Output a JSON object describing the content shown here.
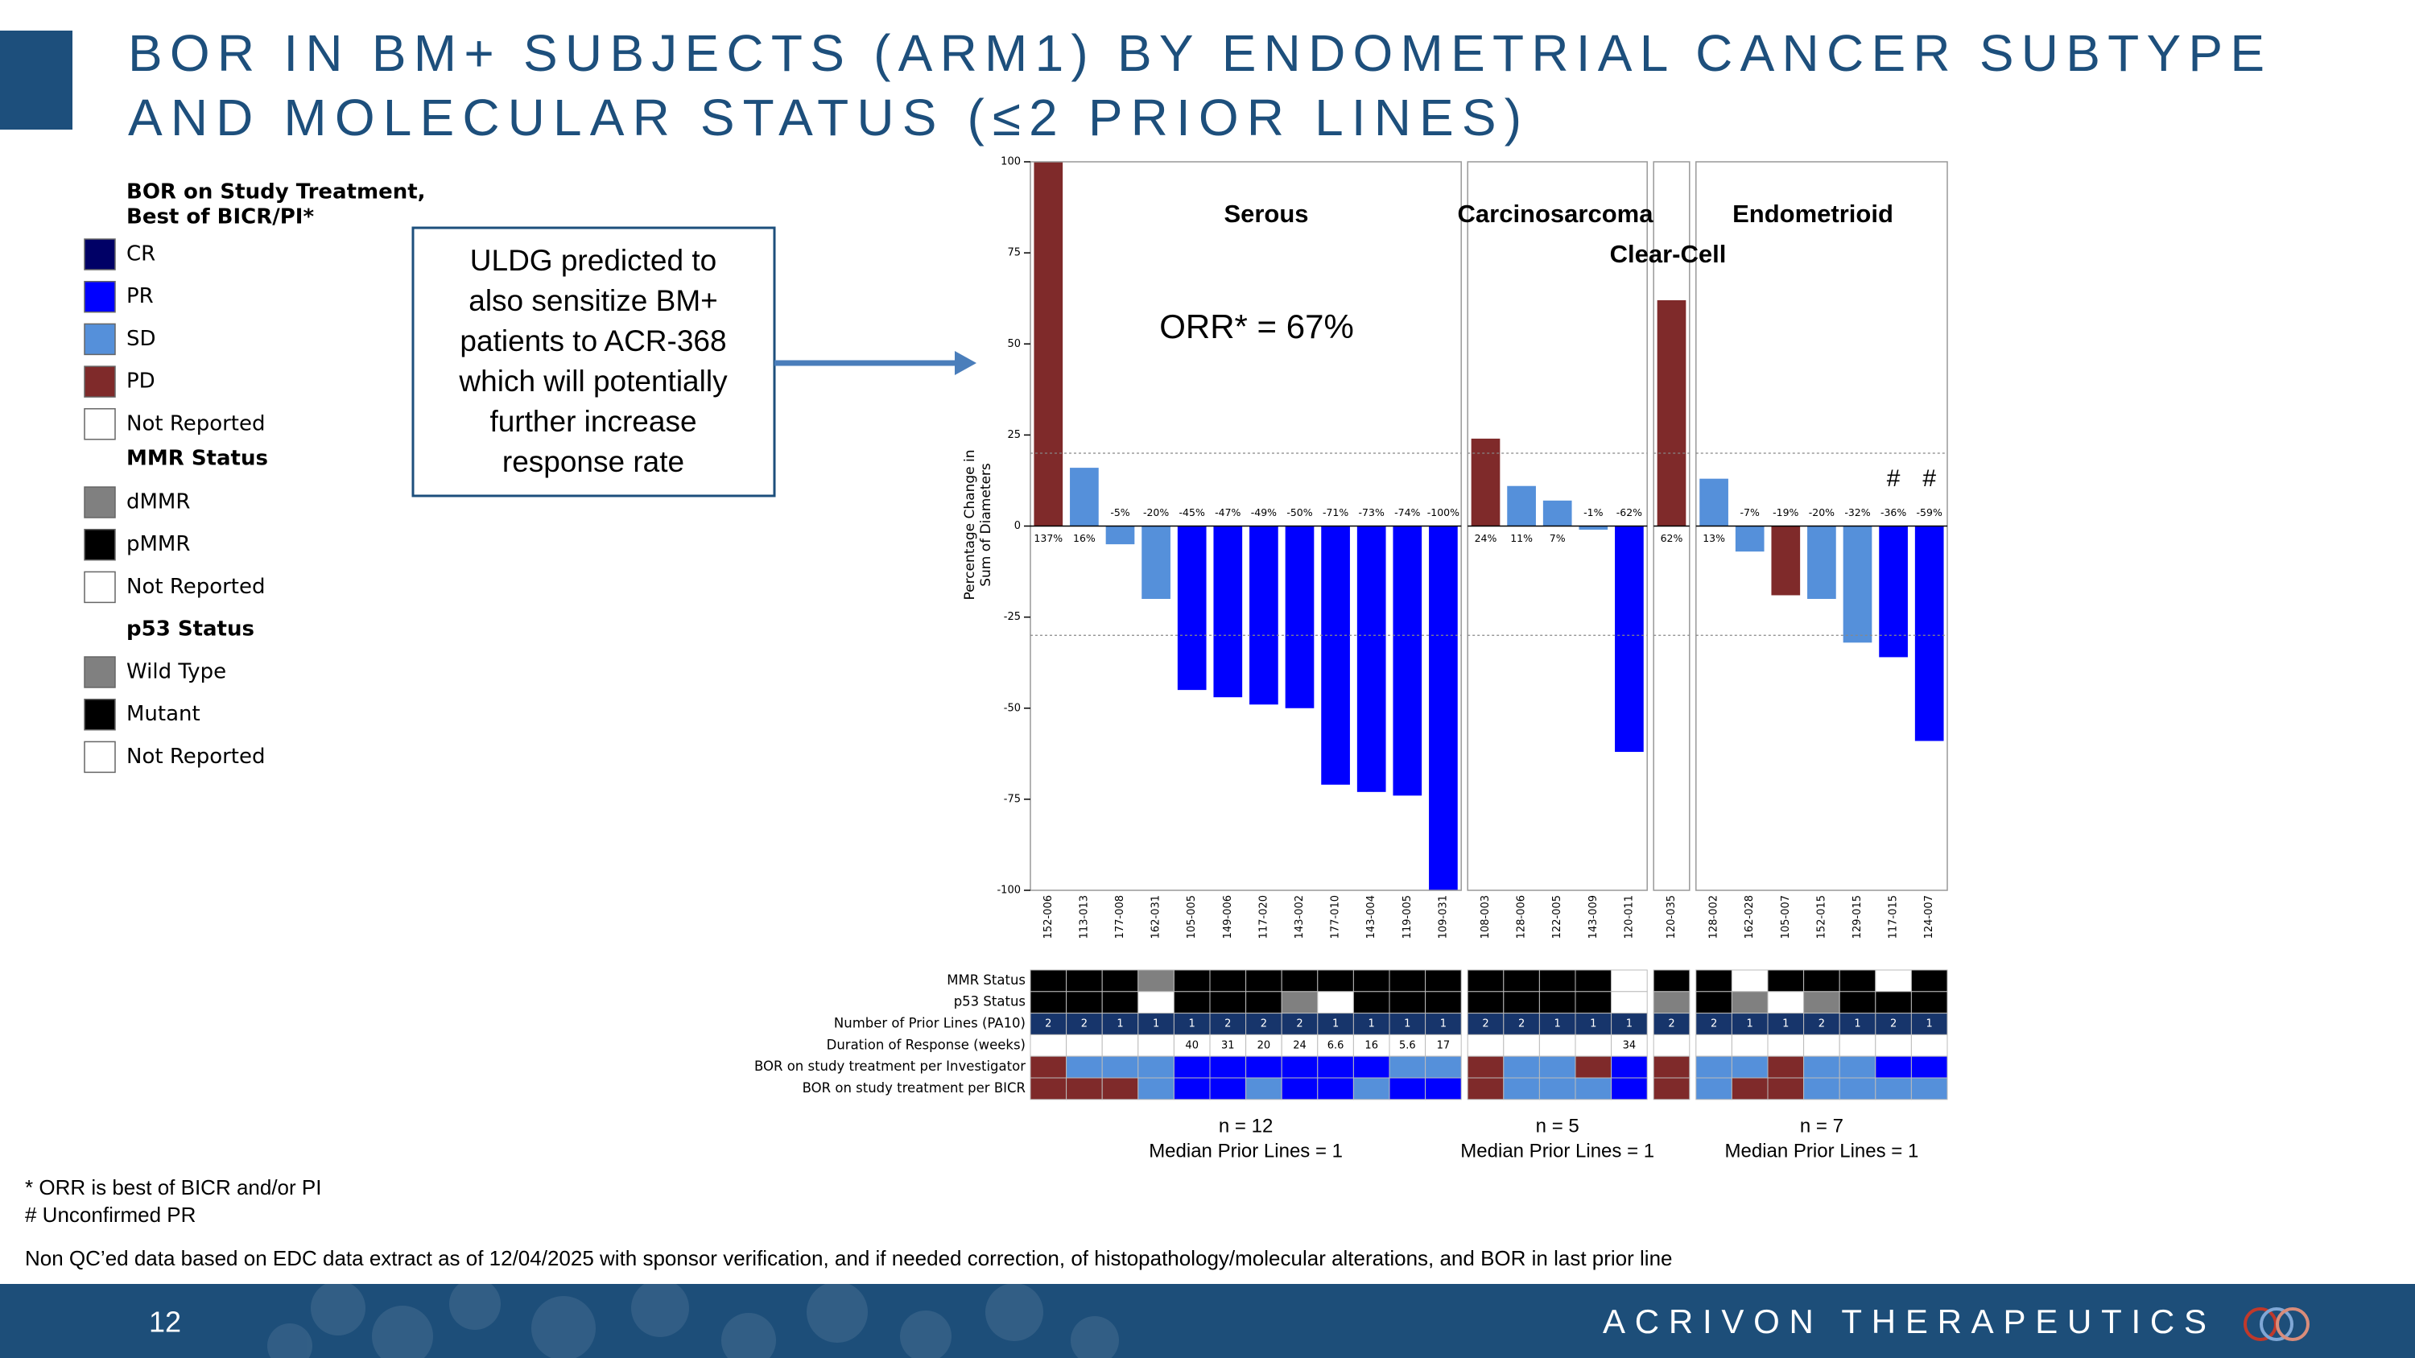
{
  "title": [
    "BOR IN BM+ SUBJECTS (ARM1) BY ENDOMETRIAL CANCER SUBTYPE",
    "AND MOLECULAR STATUS (≤2 PRIOR LINES)"
  ],
  "legend": {
    "groups": [
      {
        "title": [
          "BOR on Study Treatment,",
          "Best of BICR/PI*"
        ],
        "items": [
          {
            "label": "CR",
            "color": "#000066"
          },
          {
            "label": "PR",
            "color": "#0000ff"
          },
          {
            "label": "SD",
            "color": "#5590da"
          },
          {
            "label": "PD",
            "color": "#7f2a2a"
          },
          {
            "label": "Not Reported",
            "color": "#ffffff"
          }
        ]
      },
      {
        "title": [
          "MMR Status"
        ],
        "items": [
          {
            "label": "dMMR",
            "color": "#808080"
          },
          {
            "label": "pMMR",
            "color": "#000000"
          },
          {
            "label": "Not Reported",
            "color": "#ffffff"
          }
        ]
      },
      {
        "title": [
          "p53 Status"
        ],
        "items": [
          {
            "label": "Wild Type",
            "color": "#808080"
          },
          {
            "label": "Mutant",
            "color": "#000000"
          },
          {
            "label": "Not Reported",
            "color": "#ffffff"
          }
        ]
      }
    ]
  },
  "callout": [
    "ULDG predicted to",
    "also sensitize BM+",
    "patients to ACR-368",
    "which will potentially",
    "further increase",
    "response rate"
  ],
  "chart_data": {
    "type": "bar",
    "y_label": [
      "Percentage Change in",
      "Sum of Diameters"
    ],
    "ylim": [
      -100,
      100
    ],
    "yticks": [
      -100,
      -75,
      -50,
      -25,
      0,
      25,
      50,
      75,
      100
    ],
    "reference_lines": [
      20,
      -30
    ],
    "annotation": "ORR* = 67%",
    "panels": [
      {
        "name": "Serous",
        "n_label": "n = 12",
        "median_label": "Median Prior Lines = 1",
        "categories": [
          "152-006",
          "113-013",
          "177-008",
          "162-031",
          "105-005",
          "149-006",
          "117-020",
          "143-002",
          "177-010",
          "143-004",
          "119-005",
          "109-031"
        ],
        "values": [
          137,
          16,
          -5,
          -20,
          -45,
          -47,
          -49,
          -50,
          -71,
          -73,
          -74,
          -100
        ],
        "value_labels": [
          "137%",
          "16%",
          "-5%",
          "-20%",
          "-45%",
          "-47%",
          "-49%",
          "-50%",
          "-71%",
          "-73%",
          "-74%",
          "-100%"
        ],
        "bor": [
          "PD",
          "SD",
          "SD",
          "SD",
          "PR",
          "PR",
          "PR",
          "PR",
          "PR",
          "PR",
          "PR",
          "PR"
        ],
        "flags": [
          null,
          null,
          null,
          null,
          null,
          null,
          null,
          null,
          null,
          null,
          null,
          null
        ]
      },
      {
        "name": "Carcinosarcoma",
        "n_label": "n = 5",
        "median_label": "Median Prior Lines = 1",
        "categories": [
          "108-003",
          "128-006",
          "122-005",
          "143-009",
          "120-011"
        ],
        "values": [
          24,
          11,
          7,
          -1,
          -62
        ],
        "value_labels": [
          "24%",
          "11%",
          "7%",
          "-1%",
          "-62%"
        ],
        "bor": [
          "PD",
          "SD",
          "SD",
          "SD",
          "PR"
        ],
        "flags": [
          null,
          null,
          null,
          null,
          null
        ]
      },
      {
        "name": "Clear-Cell",
        "categories": [
          "120-035"
        ],
        "values": [
          62
        ],
        "value_labels": [
          "62%"
        ],
        "bor": [
          "PD"
        ],
        "flags": [
          null
        ]
      },
      {
        "name": "Endometrioid",
        "n_label": "n = 7",
        "median_label": "Median Prior Lines = 1",
        "categories": [
          "128-002",
          "162-028",
          "105-007",
          "152-015",
          "129-015",
          "117-015",
          "124-007"
        ],
        "values": [
          13,
          -7,
          -19,
          -20,
          -32,
          -36,
          -59
        ],
        "value_labels": [
          "13%",
          "-7%",
          "-19%",
          "-20%",
          "-32%",
          "-36%",
          "-59%"
        ],
        "bor": [
          "SD",
          "SD",
          "PD",
          "SD",
          "SD",
          "PR",
          "PR"
        ],
        "flags": [
          null,
          null,
          null,
          null,
          null,
          "#",
          "#"
        ]
      }
    ]
  },
  "table": {
    "rows": [
      {
        "label": "MMR Status",
        "cells": [
          "pMMR",
          "pMMR",
          "pMMR",
          "dMMR",
          "pMMR",
          "pMMR",
          "pMMR",
          "pMMR",
          "pMMR",
          "pMMR",
          "pMMR",
          "pMMR",
          "pMMR",
          "pMMR",
          "pMMR",
          "pMMR",
          "Not Reported",
          "pMMR",
          "pMMR",
          "Not Reported",
          "pMMR",
          "pMMR",
          "pMMR",
          "Not Reported",
          "pMMR"
        ]
      },
      {
        "label": "p53 Status",
        "cells": [
          "Mutant",
          "Mutant",
          "Mutant",
          "Not Reported",
          "Mutant",
          "Mutant",
          "Mutant",
          "Wild Type",
          "Not Reported",
          "Mutant",
          "Mutant",
          "Mutant",
          "Mutant",
          "Mutant",
          "Mutant",
          "Mutant",
          "Not Reported",
          "Wild Type",
          "Mutant",
          "Wild Type",
          "Not Reported",
          "Wild Type",
          "Mutant",
          "Mutant",
          "Mutant"
        ]
      },
      {
        "label": "Number of Prior Lines (PA10)",
        "color": "#17356b",
        "text_color": "#ffffff",
        "cells": [
          2,
          2,
          1,
          1,
          1,
          2,
          2,
          2,
          1,
          1,
          1,
          1,
          2,
          2,
          1,
          1,
          1,
          2,
          2,
          1,
          1,
          2,
          1,
          2,
          1
        ]
      },
      {
        "label": "Duration of Response (weeks)",
        "color": "#ffffff",
        "text_color": "#000000",
        "cells": [
          null,
          null,
          null,
          null,
          40,
          31,
          20,
          24,
          6.6,
          16,
          5.6,
          17,
          null,
          null,
          null,
          null,
          34,
          null,
          null,
          null,
          null,
          null,
          null,
          null,
          null
        ]
      },
      {
        "label": "BOR on study treatment per Investigator",
        "cells": [
          "PD",
          "SD",
          "SD",
          "SD",
          "PR",
          "PR",
          "PR",
          "PR",
          "PR",
          "PR",
          "SD",
          "SD",
          "PD",
          "SD",
          "SD",
          "PD",
          "PR",
          "PD",
          "SD",
          "SD",
          "PD",
          "SD",
          "SD",
          "PR",
          "PR"
        ]
      },
      {
        "label": "BOR on study treatment per BICR",
        "cells": [
          "PD",
          "PD",
          "PD",
          "SD",
          "PR",
          "PR",
          "SD",
          "PR",
          "PR",
          "SD",
          "PR",
          "PR",
          "PD",
          "SD",
          "SD",
          "SD",
          "PR",
          "PD",
          "SD",
          "PD",
          "PD",
          "SD",
          "SD",
          "SD",
          "SD"
        ]
      }
    ]
  },
  "notes": [
    "* ORR is best of BICR and/or PI",
    "# Unconfirmed PR",
    "Non QC’ed data based on EDC data extract as of 12/04/2025 with sponsor verification, and if needed correction, of histopathology/molecular alterations, and BOR in last prior line"
  ],
  "footer": {
    "page": "12",
    "company": "ACRIVON THERAPEUTICS"
  }
}
